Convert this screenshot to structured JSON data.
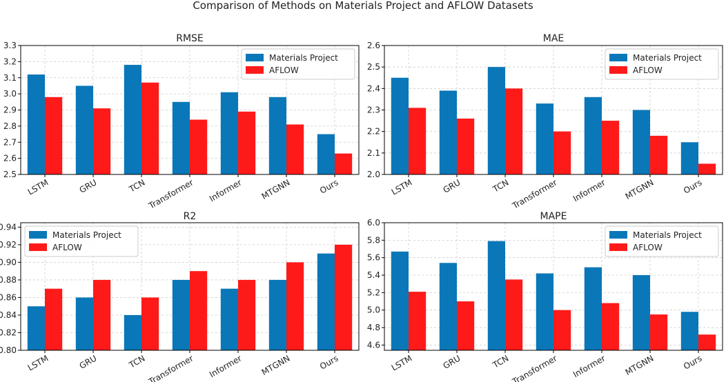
{
  "title": "Comparison of Methods on Materials Project and AFLOW Datasets",
  "colors": {
    "series_0": "#0a77b8",
    "series_1": "#ff1a1a",
    "grid": "#cccccc",
    "axis": "#000000"
  },
  "chart_data": [
    {
      "type": "bar",
      "title": "RMSE",
      "categories": [
        "LSTM",
        "GRU",
        "TCN",
        "Transformer",
        "Informer",
        "MTGNN",
        "Ours"
      ],
      "series": [
        {
          "name": "Materials Project",
          "values": [
            3.12,
            3.05,
            3.18,
            2.95,
            3.01,
            2.98,
            2.75
          ]
        },
        {
          "name": "AFLOW",
          "values": [
            2.98,
            2.91,
            3.07,
            2.84,
            2.89,
            2.81,
            2.63
          ]
        }
      ],
      "ylim": [
        2.5,
        3.3
      ],
      "yticks": [
        "2.5",
        "2.6",
        "2.7",
        "2.8",
        "2.9",
        "3.0",
        "3.1",
        "3.2",
        "3.3"
      ],
      "legend": "top-right",
      "grid": true
    },
    {
      "type": "bar",
      "title": "MAE",
      "categories": [
        "LSTM",
        "GRU",
        "TCN",
        "Transformer",
        "Informer",
        "MTGNN",
        "Ours"
      ],
      "series": [
        {
          "name": "Materials Project",
          "values": [
            2.45,
            2.39,
            2.5,
            2.33,
            2.36,
            2.3,
            2.15
          ]
        },
        {
          "name": "AFLOW",
          "values": [
            2.31,
            2.26,
            2.4,
            2.2,
            2.25,
            2.18,
            2.05
          ]
        }
      ],
      "ylim": [
        2.0,
        2.6
      ],
      "yticks": [
        "2.0",
        "2.1",
        "2.2",
        "2.3",
        "2.4",
        "2.5",
        "2.6"
      ],
      "legend": "top-right",
      "grid": true
    },
    {
      "type": "bar",
      "title": "R2",
      "categories": [
        "LSTM",
        "GRU",
        "TCN",
        "Transformer",
        "Informer",
        "MTGNN",
        "Ours"
      ],
      "series": [
        {
          "name": "Materials Project",
          "values": [
            0.85,
            0.86,
            0.84,
            0.88,
            0.87,
            0.88,
            0.91
          ]
        },
        {
          "name": "AFLOW",
          "values": [
            0.87,
            0.88,
            0.86,
            0.89,
            0.88,
            0.9,
            0.92
          ]
        }
      ],
      "ylim": [
        0.8,
        0.945
      ],
      "yticks": [
        "0.80",
        "0.82",
        "0.84",
        "0.86",
        "0.88",
        "0.90",
        "0.92",
        "0.94"
      ],
      "legend": "top-left",
      "grid": true
    },
    {
      "type": "bar",
      "title": "MAPE",
      "categories": [
        "LSTM",
        "GRU",
        "TCN",
        "Transformer",
        "Informer",
        "MTGNN",
        "Ours"
      ],
      "series": [
        {
          "name": "Materials Project",
          "values": [
            5.67,
            5.54,
            5.79,
            5.42,
            5.49,
            5.4,
            4.98
          ]
        },
        {
          "name": "AFLOW",
          "values": [
            5.21,
            5.1,
            5.35,
            5.0,
            5.08,
            4.95,
            4.72
          ]
        }
      ],
      "ylim": [
        4.54,
        6.0
      ],
      "yticks": [
        "4.6",
        "4.8",
        "5.0",
        "5.2",
        "5.4",
        "5.6",
        "5.8",
        "6.0"
      ],
      "legend": "top-right",
      "grid": true
    }
  ]
}
